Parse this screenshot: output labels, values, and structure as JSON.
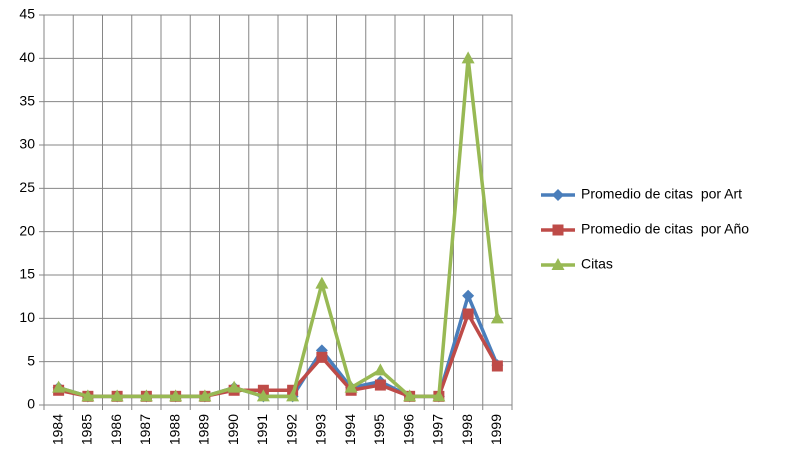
{
  "chart_data": {
    "type": "line",
    "categories": [
      "1984",
      "1985",
      "1986",
      "1987",
      "1988",
      "1989",
      "1990",
      "1991",
      "1992",
      "1993",
      "1994",
      "1995",
      "1996",
      "1997",
      "1998",
      "1999"
    ],
    "series": [
      {
        "name": "Promedio de citas  por Art",
        "color": "#4a7ebb",
        "marker": "diamond",
        "values": [
          2,
          1,
          1,
          1,
          1,
          1,
          2,
          1,
          1,
          6.3,
          2,
          2.7,
          1,
          1,
          12.6,
          4.6
        ]
      },
      {
        "name": "Promedio de citas  por Año",
        "color": "#be4b48",
        "marker": "square",
        "values": [
          1.7,
          1,
          1,
          1,
          1,
          1,
          1.7,
          1.7,
          1.7,
          5.5,
          1.7,
          2.3,
          1,
          1,
          10.5,
          4.5
        ]
      },
      {
        "name": "Citas",
        "color": "#98b954",
        "marker": "triangle",
        "values": [
          2,
          1,
          1,
          1,
          1,
          1,
          2,
          1,
          1,
          14,
          2,
          4,
          1,
          1,
          40,
          10
        ]
      }
    ],
    "ylim": [
      0,
      45
    ],
    "yticks": [
      0,
      5,
      10,
      15,
      20,
      25,
      30,
      35,
      40,
      45
    ],
    "grid": true,
    "legend": "right"
  }
}
